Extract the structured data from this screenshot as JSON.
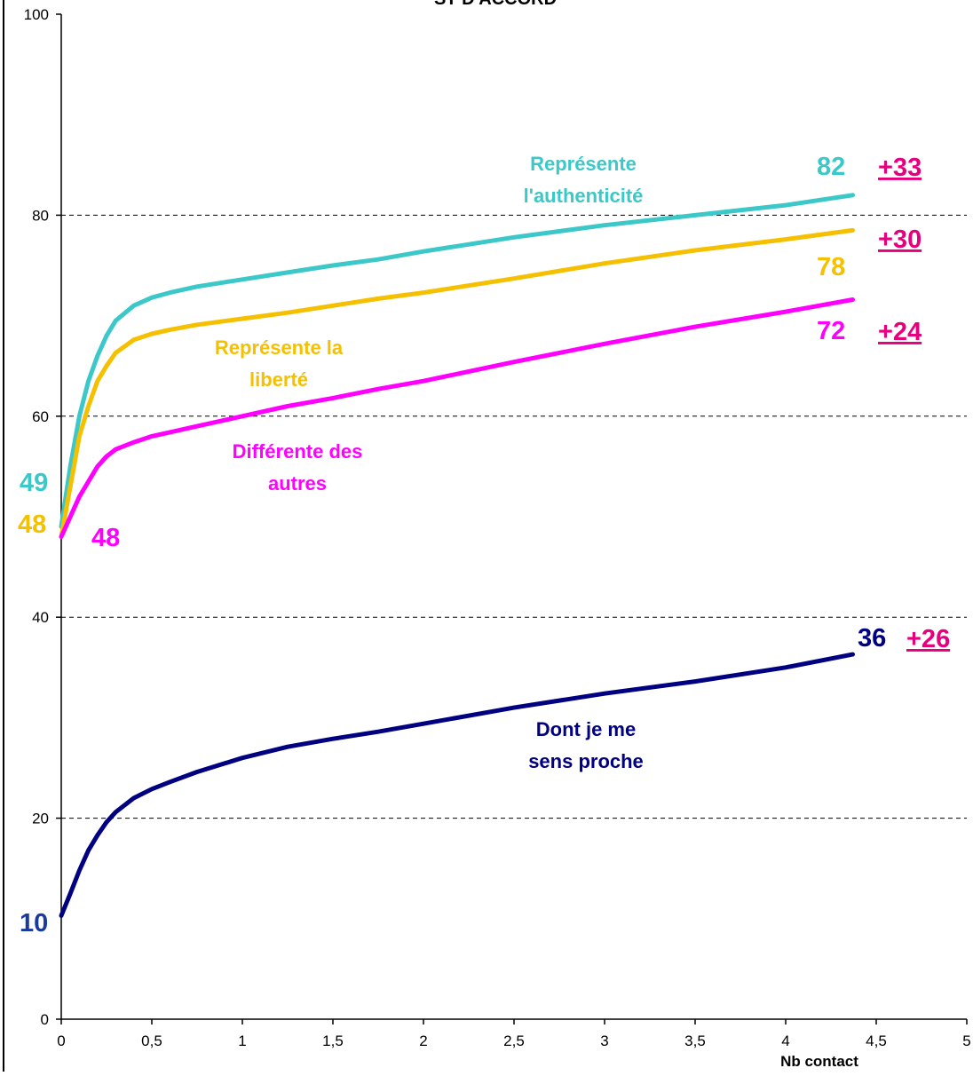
{
  "chart_data": {
    "type": "line",
    "title": "ST D'ACCORD",
    "xlabel": "Nb contact",
    "ylabel": "",
    "xlim": [
      0,
      5
    ],
    "ylim": [
      0,
      100
    ],
    "x_ticks": [
      0,
      0.5,
      1,
      1.5,
      2,
      2.5,
      3,
      3.5,
      4,
      4.5,
      5
    ],
    "x_tick_labels": [
      "0",
      "0,5",
      "1",
      "1,5",
      "2",
      "2,5",
      "3",
      "3,5",
      "4",
      "4,5",
      "5"
    ],
    "y_ticks": [
      0,
      20,
      40,
      60,
      80,
      100
    ],
    "y_tick_labels": [
      "0",
      "20",
      "40",
      "60",
      "80",
      "100"
    ],
    "grid": "horizontal dashed",
    "series": [
      {
        "label": "Représente l'authenticité",
        "color": "#3cc8c8",
        "x": [
          0,
          0.05,
          0.1,
          0.15,
          0.2,
          0.25,
          0.3,
          0.4,
          0.5,
          0.6,
          0.75,
          1,
          1.25,
          1.5,
          1.75,
          2,
          2.5,
          3,
          3.5,
          4,
          4.37
        ],
        "y": [
          49,
          55,
          60,
          63.5,
          66,
          68,
          69.5,
          71,
          71.8,
          72.3,
          72.9,
          73.6,
          74.3,
          75,
          75.6,
          76.4,
          77.8,
          79,
          80,
          81,
          82
        ],
        "start_label": "49",
        "end_label": "82",
        "delta_label": "+33"
      },
      {
        "label": "Représente la liberté",
        "color": "#f5c000",
        "x": [
          0,
          0.05,
          0.1,
          0.15,
          0.2,
          0.25,
          0.3,
          0.4,
          0.5,
          0.6,
          0.75,
          1,
          1.25,
          1.5,
          1.75,
          2,
          2.5,
          3,
          3.5,
          4,
          4.37
        ],
        "y": [
          48,
          53,
          58,
          61,
          63.5,
          65,
          66.3,
          67.6,
          68.2,
          68.6,
          69.1,
          69.7,
          70.3,
          71,
          71.7,
          72.3,
          73.7,
          75.2,
          76.5,
          77.6,
          78.5
        ],
        "start_label": "48",
        "end_label": "78",
        "delta_label": "+30"
      },
      {
        "label": "Différente des autres",
        "color": "#ff00ff",
        "x": [
          0,
          0.05,
          0.1,
          0.15,
          0.2,
          0.25,
          0.3,
          0.4,
          0.5,
          0.6,
          0.75,
          1,
          1.25,
          1.5,
          1.75,
          2,
          2.5,
          3,
          3.5,
          4,
          4.37
        ],
        "y": [
          48,
          50,
          52,
          53.5,
          55,
          56,
          56.7,
          57.4,
          58,
          58.4,
          59,
          60,
          61,
          61.8,
          62.7,
          63.5,
          65.4,
          67.2,
          68.9,
          70.4,
          71.6
        ],
        "start_label": "48",
        "end_label": "72",
        "delta_label": "+24"
      },
      {
        "label": "Dont je me sens proche",
        "color": "#000080",
        "x": [
          0,
          0.05,
          0.1,
          0.15,
          0.2,
          0.25,
          0.3,
          0.4,
          0.5,
          0.6,
          0.75,
          1,
          1.25,
          1.5,
          1.75,
          2,
          2.5,
          3,
          3.5,
          4,
          4.37
        ],
        "y": [
          10.3,
          12.5,
          14.8,
          16.8,
          18.3,
          19.6,
          20.6,
          22,
          22.9,
          23.6,
          24.6,
          26,
          27.1,
          27.9,
          28.6,
          29.4,
          31,
          32.4,
          33.6,
          35,
          36.3
        ],
        "start_label": "10",
        "end_label": "36",
        "delta_label": "+26"
      }
    ],
    "annotations": {
      "auth_line1": "Représente",
      "auth_line2": "l'authenticité",
      "lib_line1": "Représente la",
      "lib_line2": "liberté",
      "diff_line1": "Différente des",
      "diff_line2": "autres",
      "proche_line1": "Dont je me",
      "proche_line2": "sens proche"
    },
    "colors": {
      "delta": "#e6007e",
      "axis": "#000000",
      "grid": "#000000",
      "proche_start": "#1a3a9c"
    }
  }
}
